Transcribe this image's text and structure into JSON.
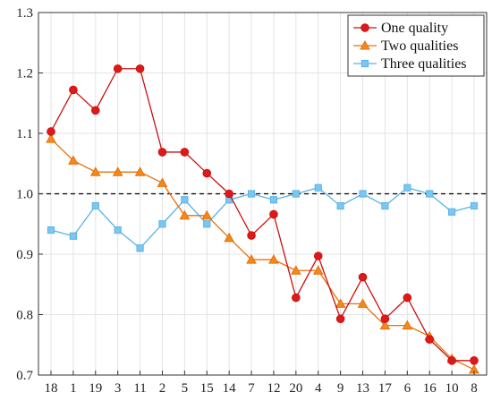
{
  "chart_data": {
    "type": "line",
    "categories": [
      "18",
      "1",
      "19",
      "3",
      "11",
      "2",
      "5",
      "15",
      "14",
      "7",
      "12",
      "20",
      "4",
      "9",
      "13",
      "17",
      "6",
      "16",
      "10",
      "8"
    ],
    "ylim": [
      0.7,
      1.3
    ],
    "yticks": [
      "0.7",
      "0.8",
      "0.9",
      "1.0",
      "1.1",
      "1.2",
      "1.3"
    ],
    "grid": true,
    "reference_line": {
      "y": 1.0,
      "style": "dashed",
      "color": "#000000"
    },
    "legend_position": "top-right",
    "series": [
      {
        "name": "One quality",
        "marker": "circle",
        "color": "#cc1111",
        "fill": "#dd1a1a",
        "values": [
          1.103,
          1.172,
          1.138,
          1.207,
          1.207,
          1.069,
          1.069,
          1.034,
          1.0,
          0.931,
          0.966,
          0.828,
          0.897,
          0.793,
          0.862,
          0.793,
          0.828,
          0.759,
          0.724,
          0.724
        ]
      },
      {
        "name": "Two qualities",
        "marker": "triangle",
        "color": "#e8700a",
        "fill": "#f08a1c",
        "values": [
          1.091,
          1.055,
          1.036,
          1.036,
          1.036,
          1.018,
          0.964,
          0.964,
          0.927,
          0.891,
          0.891,
          0.873,
          0.873,
          0.818,
          0.818,
          0.782,
          0.782,
          0.764,
          0.727,
          0.709
        ]
      },
      {
        "name": "Three qualities",
        "marker": "square",
        "color": "#5ab4e6",
        "fill": "#7cc6ef",
        "values": [
          0.94,
          0.93,
          0.98,
          0.94,
          0.91,
          0.95,
          0.99,
          0.95,
          0.99,
          1.0,
          0.99,
          1.0,
          1.01,
          0.98,
          1.0,
          0.98,
          1.01,
          1.0,
          0.97,
          0.98
        ]
      }
    ]
  }
}
